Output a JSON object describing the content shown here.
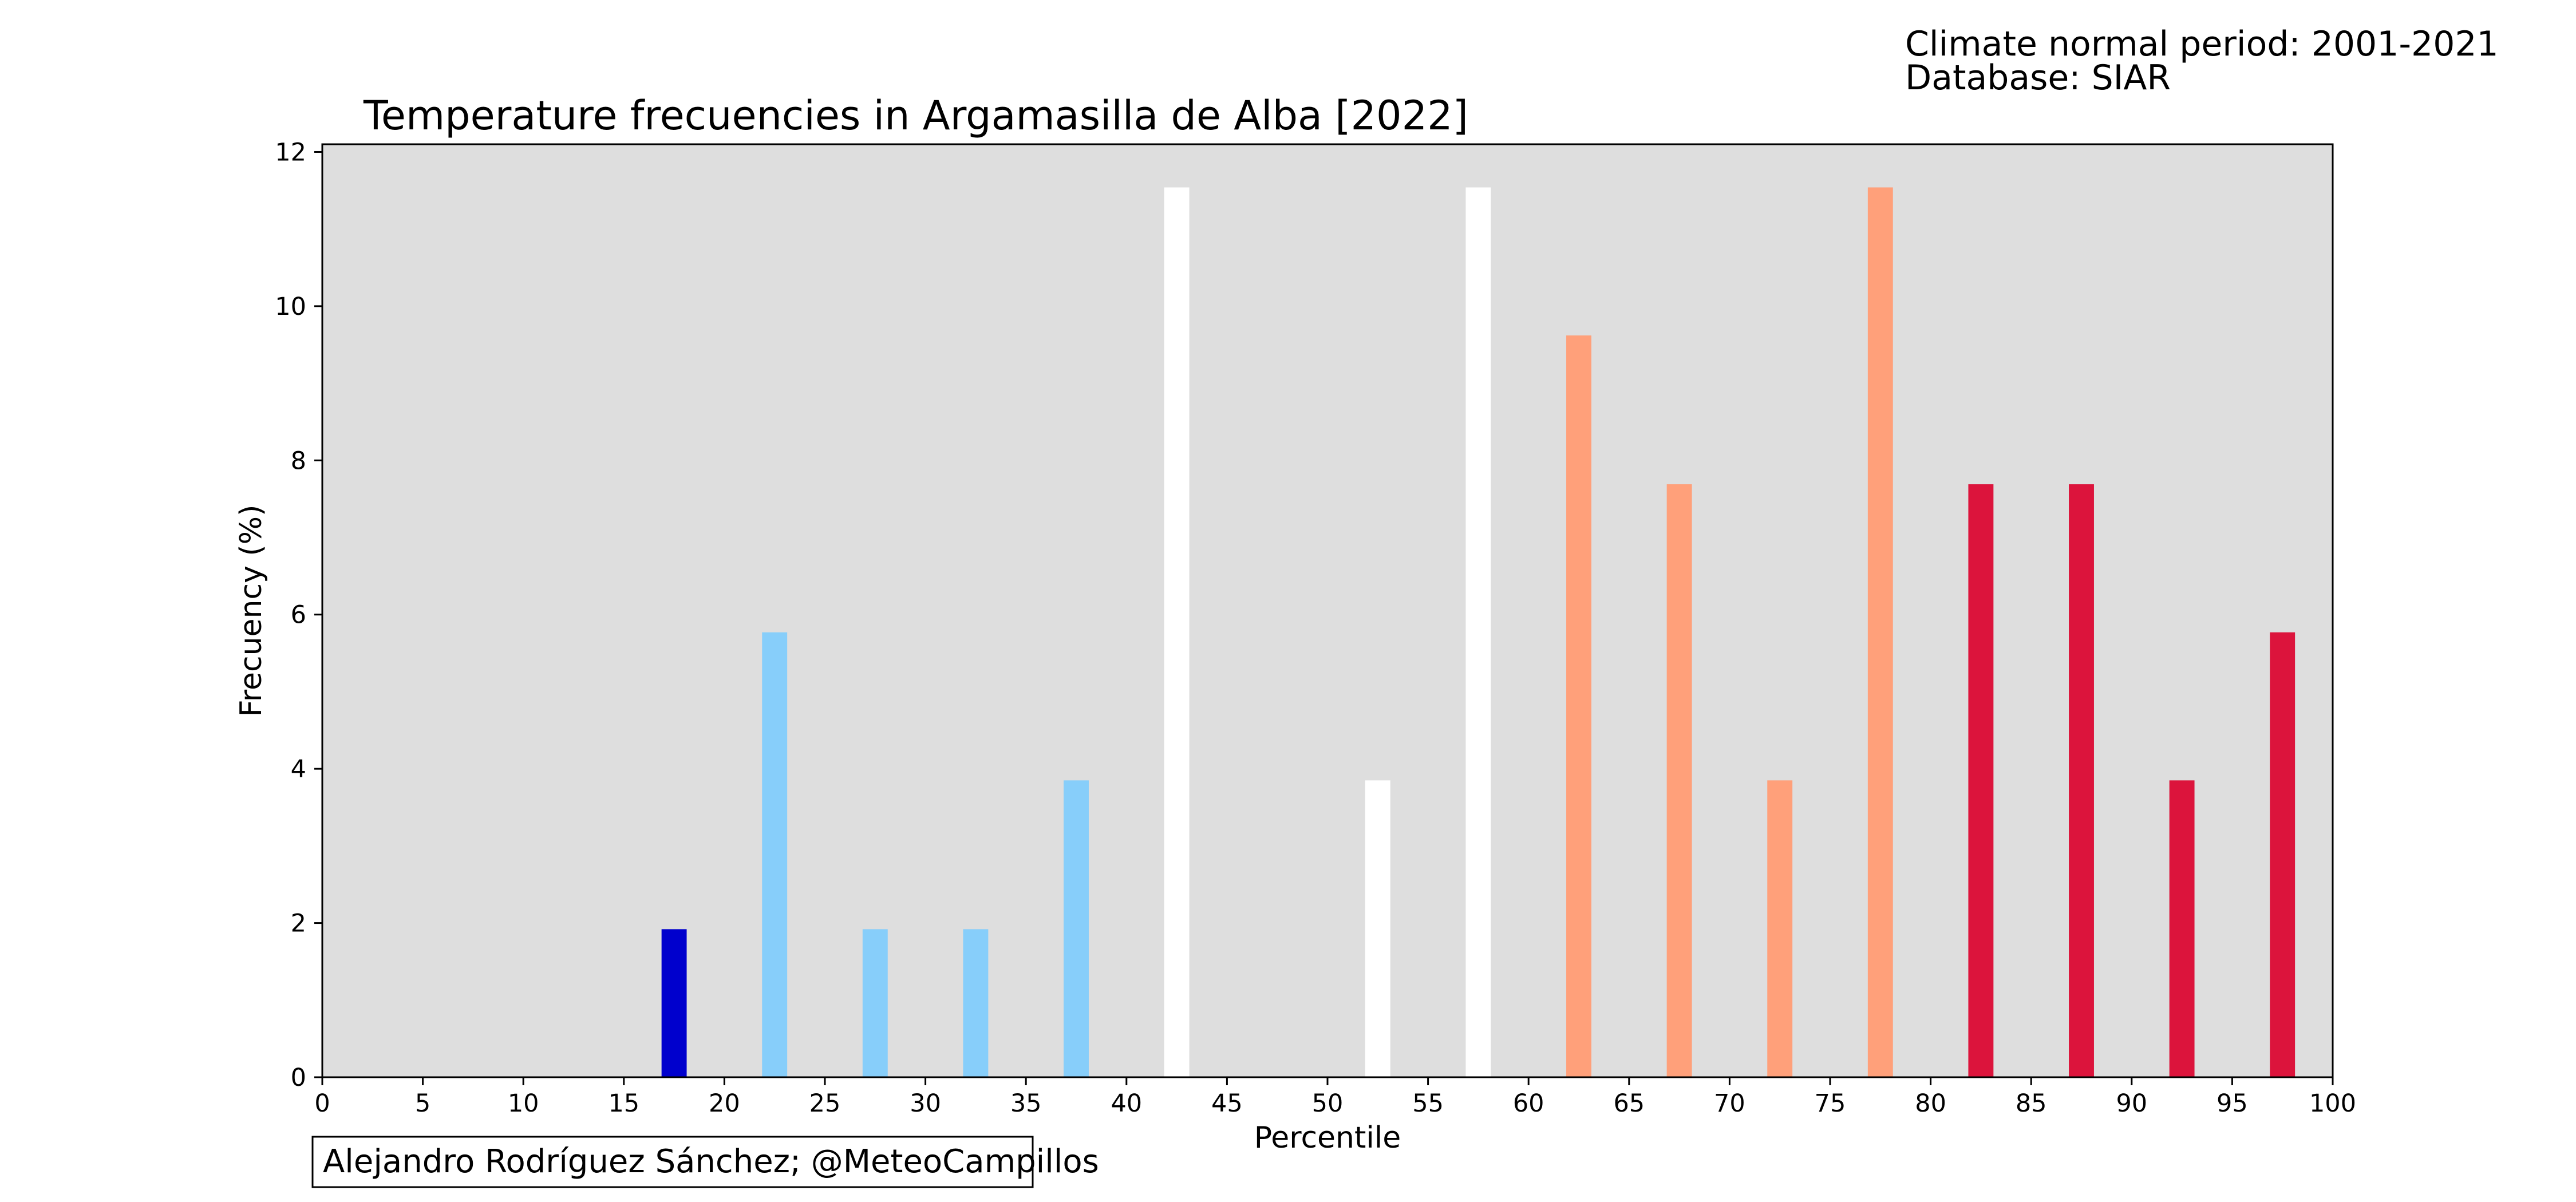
{
  "header": {
    "note_line1": "Climate normal period: 2001-2021",
    "note_line2": "Database: SIAR"
  },
  "credit": "Alejandro Rodríguez Sánchez; @MeteoCampillos",
  "colors": {
    "plot_background": "#dedede",
    "very_cold": "#0000cd",
    "cold": "#87cefa",
    "normal": "#ffffff",
    "warm": "#ffa07a",
    "very_warm": "#dc143c"
  },
  "chart_data": {
    "type": "bar",
    "title": "Temperature frecuencies in Argamasilla de Alba [2022]",
    "xlabel": "Percentile",
    "ylabel": "Frecuency (%)",
    "xlim": [
      0,
      100
    ],
    "ylim": [
      0,
      12.1
    ],
    "xticks": [
      0,
      5,
      10,
      15,
      20,
      25,
      30,
      35,
      40,
      45,
      50,
      55,
      60,
      65,
      70,
      75,
      80,
      85,
      90,
      95,
      100
    ],
    "yticks": [
      0,
      2,
      4,
      6,
      8,
      10,
      12
    ],
    "bar_width": 1.25,
    "grid": false,
    "bars": [
      {
        "x": 17.5,
        "value": 1.92,
        "color_key": "very_cold"
      },
      {
        "x": 22.5,
        "value": 5.77,
        "color_key": "cold"
      },
      {
        "x": 27.5,
        "value": 1.92,
        "color_key": "cold"
      },
      {
        "x": 32.5,
        "value": 1.92,
        "color_key": "cold"
      },
      {
        "x": 37.5,
        "value": 3.85,
        "color_key": "cold"
      },
      {
        "x": 42.5,
        "value": 11.54,
        "color_key": "normal"
      },
      {
        "x": 52.5,
        "value": 3.85,
        "color_key": "normal"
      },
      {
        "x": 57.5,
        "value": 11.54,
        "color_key": "normal"
      },
      {
        "x": 62.5,
        "value": 9.62,
        "color_key": "warm"
      },
      {
        "x": 67.5,
        "value": 7.69,
        "color_key": "warm"
      },
      {
        "x": 72.5,
        "value": 3.85,
        "color_key": "warm"
      },
      {
        "x": 77.5,
        "value": 11.54,
        "color_key": "warm"
      },
      {
        "x": 82.5,
        "value": 7.69,
        "color_key": "very_warm"
      },
      {
        "x": 87.5,
        "value": 7.69,
        "color_key": "very_warm"
      },
      {
        "x": 92.5,
        "value": 3.85,
        "color_key": "very_warm"
      },
      {
        "x": 97.5,
        "value": 5.77,
        "color_key": "very_warm"
      }
    ]
  }
}
